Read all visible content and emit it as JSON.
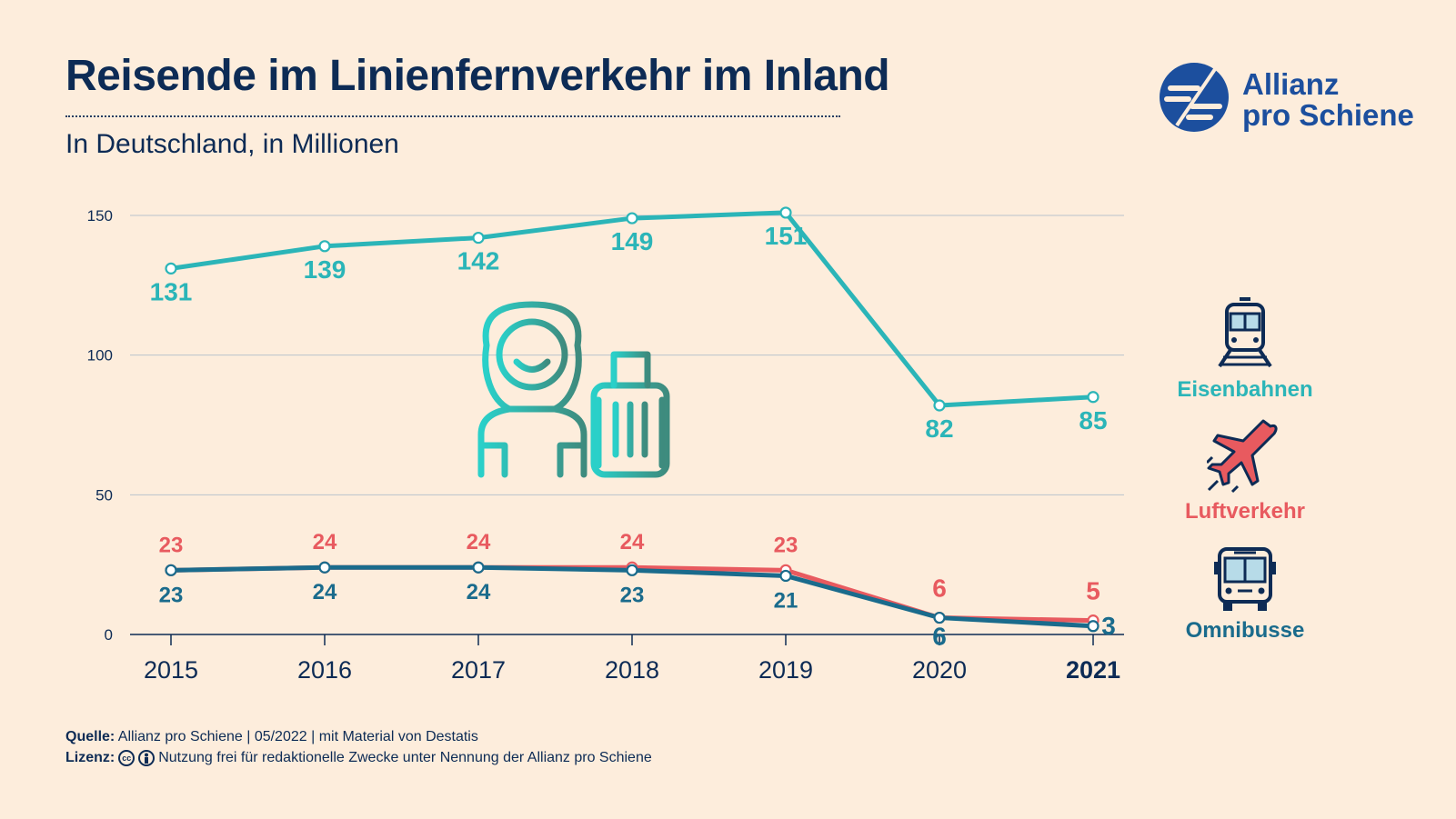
{
  "title": "Reisende im Linienfernverkehr im Inland",
  "subtitle": "In Deutschland, in Millionen",
  "brand": {
    "line1": "Allianz",
    "line2": "pro Schiene"
  },
  "legend": [
    {
      "name": "Eisenbahnen",
      "icon": "train-icon",
      "color": "#2bb5b8"
    },
    {
      "name": "Luftverkehr",
      "icon": "airplane-icon",
      "color": "#e85a5f"
    },
    {
      "name": "Omnibusse",
      "icon": "bus-icon",
      "color": "#1a6b8c"
    }
  ],
  "footer": {
    "source_label": "Quelle:",
    "source_text": "Allianz pro Schiene | 05/2022 | mit Material von Destatis",
    "license_label": "Lizenz:",
    "license_icons": [
      "cc-icon",
      "attribution-icon"
    ],
    "license_text": "Nutzung frei für redaktionelle Zwecke unter Nennung der Allianz pro Schiene"
  },
  "chart_data": {
    "type": "line",
    "categories": [
      "2015",
      "2016",
      "2017",
      "2018",
      "2019",
      "2020",
      "2021"
    ],
    "highlight_category": "2021",
    "y_ticks": [
      0,
      50,
      100,
      150
    ],
    "ylim": [
      0,
      150
    ],
    "grid": true,
    "series": [
      {
        "name": "Eisenbahnen",
        "color": "#2bb5b8",
        "values": [
          131,
          139,
          142,
          149,
          151,
          82,
          85
        ],
        "label_position": "below"
      },
      {
        "name": "Luftverkehr",
        "color": "#e85a5f",
        "values": [
          23,
          24,
          24,
          24,
          23,
          6,
          5
        ],
        "label_position": "above"
      },
      {
        "name": "Omnibusse",
        "color": "#1a6b8c",
        "values": [
          23,
          24,
          24,
          23,
          21,
          6,
          3
        ],
        "label_position": "below"
      }
    ]
  }
}
